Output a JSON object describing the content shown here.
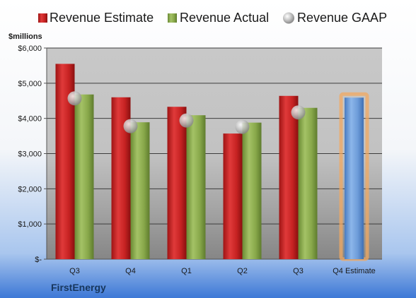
{
  "company": "FirstEnergy",
  "chart_data": {
    "type": "bar",
    "unit_label": "$millions",
    "categories": [
      "Q3",
      "Q4",
      "Q1",
      "Q2",
      "Q3",
      "Q4 Estimate"
    ],
    "series": [
      {
        "name": "Revenue Estimate",
        "type": "bar",
        "color": "#d42a2a",
        "values": [
          5550,
          4600,
          4330,
          3570,
          4640,
          null
        ]
      },
      {
        "name": "Revenue Actual",
        "type": "bar",
        "color": "#8fae4f",
        "values": [
          4680,
          3890,
          4090,
          3880,
          4300,
          null
        ]
      },
      {
        "name": "Revenue GAAP",
        "type": "scatter",
        "color": "#b8b8b8",
        "values": [
          4570,
          3780,
          3940,
          3760,
          4170,
          null
        ]
      }
    ],
    "forecast": {
      "category": "Q4 Estimate",
      "value": 4590,
      "color": "#6f9fd8",
      "highlight": "#f2a860"
    },
    "ylim": [
      0,
      6000
    ],
    "yticks": [
      0,
      1000,
      2000,
      3000,
      4000,
      5000,
      6000
    ],
    "ytick_labels": [
      "$-",
      "$1,000",
      "$2,000",
      "$3,000",
      "$4,000",
      "$5,000",
      "$6,000"
    ],
    "legend_position": "top",
    "grid": true
  }
}
